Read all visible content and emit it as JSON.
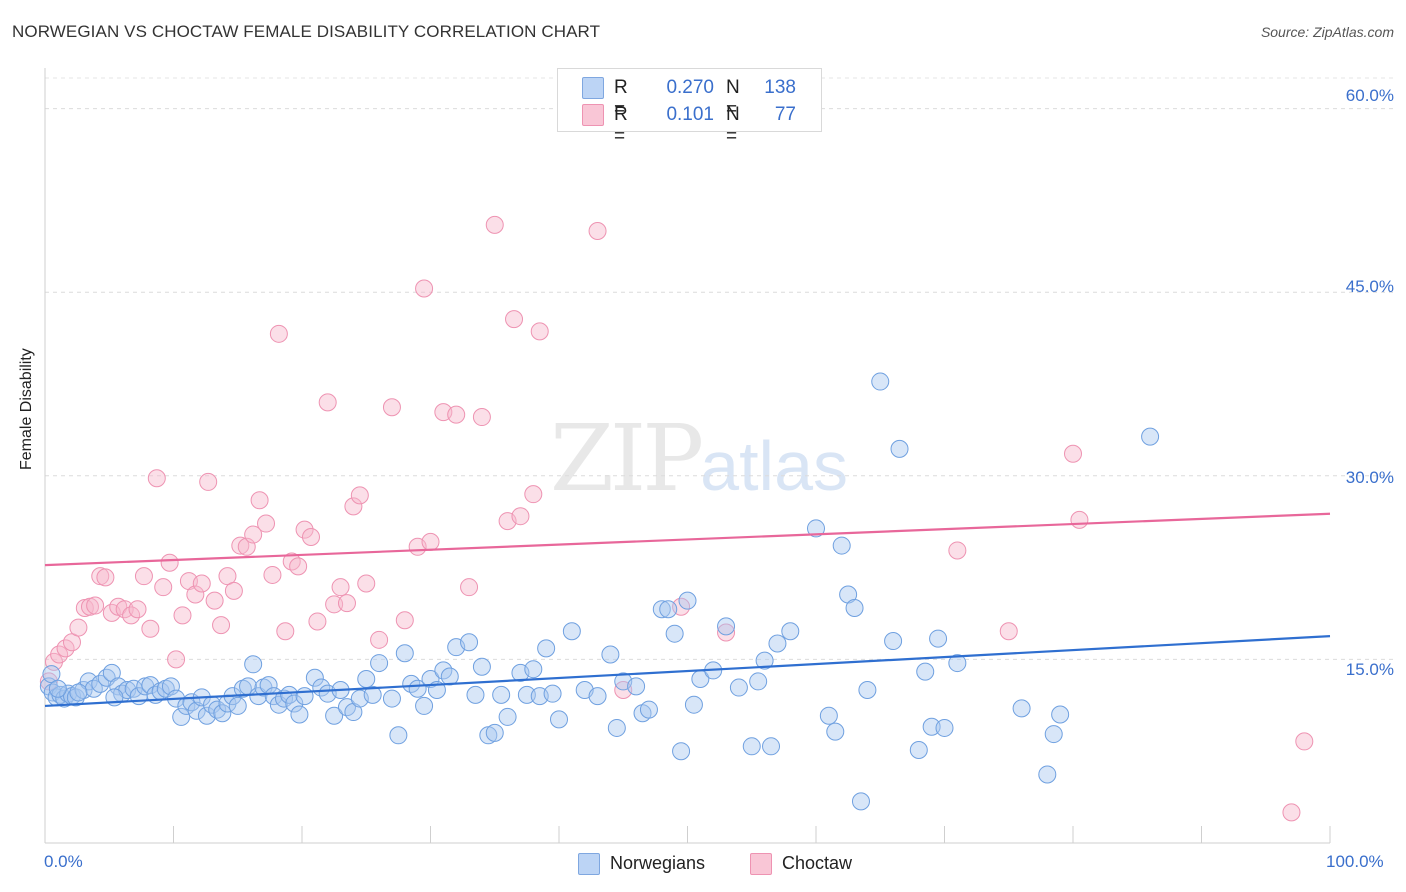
{
  "header": {
    "title": "NORWEGIAN VS CHOCTAW FEMALE DISABILITY CORRELATION CHART",
    "source": "Source: ZipAtlas.com"
  },
  "watermark": {
    "part1": "ZIP",
    "part2": "atlas"
  },
  "legend": {
    "rows": [
      {
        "r_label": "R =",
        "r_value": "0.270",
        "n_label": "N =",
        "n_value": "138",
        "color": "#a9c8f0"
      },
      {
        "r_label": "R =",
        "r_value": "0.101",
        "n_label": "N =",
        "n_value": "77",
        "color": "#f7b8cc"
      }
    ]
  },
  "bottom_legend": {
    "items": [
      {
        "label": "Norwegians",
        "color": "#a9c8f0"
      },
      {
        "label": "Choctaw",
        "color": "#f7b8cc"
      }
    ]
  },
  "chart_data": {
    "type": "scatter",
    "title": "NORWEGIAN VS CHOCTAW FEMALE DISABILITY CORRELATION CHART",
    "xlabel": "",
    "ylabel": "Female Disability",
    "xlim": [
      0,
      100
    ],
    "ylim": [
      0,
      60
    ],
    "x_tick_labels": [
      "0.0%",
      "100.0%"
    ],
    "y_tick_labels": [
      "15.0%",
      "30.0%",
      "45.0%",
      "60.0%"
    ],
    "y_ticks": [
      15,
      30,
      45,
      60
    ],
    "grid": true,
    "legend_position": "top-center",
    "colors": {
      "norwegians": "#6fa0e0",
      "choctaw": "#f08aac",
      "norwegians_line": "#2f6fd0",
      "choctaw_line": "#e8679a"
    },
    "series": [
      {
        "name": "Norwegians",
        "trend": {
          "x": [
            0,
            100
          ],
          "y": [
            11.2,
            16.9
          ]
        },
        "points": [
          [
            0.3,
            12.8
          ],
          [
            0.6,
            12.3
          ],
          [
            0.9,
            11.9
          ],
          [
            1.2,
            12.1
          ],
          [
            1.5,
            11.8
          ],
          [
            1.8,
            12.2
          ],
          [
            2.1,
            12.0
          ],
          [
            2.4,
            11.9
          ],
          [
            3.0,
            12.5
          ],
          [
            3.4,
            13.2
          ],
          [
            3.8,
            12.6
          ],
          [
            4.3,
            13.0
          ],
          [
            4.8,
            13.5
          ],
          [
            5.2,
            13.9
          ],
          [
            5.7,
            12.8
          ],
          [
            6.0,
            12.2
          ],
          [
            6.4,
            12.5
          ],
          [
            6.9,
            12.6
          ],
          [
            7.3,
            12.0
          ],
          [
            7.8,
            12.8
          ],
          [
            8.2,
            12.9
          ],
          [
            8.6,
            12.1
          ],
          [
            9.0,
            12.4
          ],
          [
            9.4,
            12.6
          ],
          [
            9.8,
            12.8
          ],
          [
            10.2,
            11.8
          ],
          [
            10.6,
            10.3
          ],
          [
            11.0,
            11.2
          ],
          [
            11.4,
            11.5
          ],
          [
            11.8,
            10.8
          ],
          [
            12.2,
            11.9
          ],
          [
            12.6,
            10.4
          ],
          [
            13.0,
            11.3
          ],
          [
            13.4,
            10.9
          ],
          [
            13.8,
            10.6
          ],
          [
            14.2,
            11.4
          ],
          [
            14.6,
            12.0
          ],
          [
            15.0,
            11.2
          ],
          [
            15.4,
            12.6
          ],
          [
            15.8,
            12.8
          ],
          [
            16.2,
            14.6
          ],
          [
            16.6,
            12.0
          ],
          [
            17.0,
            12.7
          ],
          [
            17.4,
            12.9
          ],
          [
            17.8,
            12.0
          ],
          [
            18.2,
            11.3
          ],
          [
            18.6,
            11.8
          ],
          [
            19.0,
            12.1
          ],
          [
            19.4,
            11.4
          ],
          [
            19.8,
            10.5
          ],
          [
            20.2,
            12.0
          ],
          [
            21.0,
            13.5
          ],
          [
            21.5,
            12.7
          ],
          [
            22.0,
            12.2
          ],
          [
            22.5,
            10.4
          ],
          [
            23.0,
            12.5
          ],
          [
            23.5,
            11.1
          ],
          [
            24.0,
            10.7
          ],
          [
            24.5,
            11.8
          ],
          [
            25.0,
            13.4
          ],
          [
            25.5,
            12.1
          ],
          [
            26.0,
            14.7
          ],
          [
            27.0,
            11.8
          ],
          [
            27.5,
            8.8
          ],
          [
            28.0,
            15.5
          ],
          [
            28.5,
            13.0
          ],
          [
            29.0,
            12.6
          ],
          [
            29.5,
            11.2
          ],
          [
            30.0,
            13.4
          ],
          [
            30.5,
            12.5
          ],
          [
            31.0,
            14.1
          ],
          [
            31.5,
            13.6
          ],
          [
            32.0,
            16.0
          ],
          [
            33.0,
            16.4
          ],
          [
            33.5,
            12.1
          ],
          [
            34.0,
            14.4
          ],
          [
            34.5,
            8.8
          ],
          [
            35.0,
            9.0
          ],
          [
            35.5,
            12.1
          ],
          [
            36.0,
            10.3
          ],
          [
            37.0,
            13.9
          ],
          [
            37.5,
            12.1
          ],
          [
            38.0,
            14.2
          ],
          [
            38.5,
            12.0
          ],
          [
            39.0,
            15.9
          ],
          [
            39.5,
            12.2
          ],
          [
            40.0,
            10.1
          ],
          [
            41.0,
            17.3
          ],
          [
            42.0,
            12.5
          ],
          [
            43.0,
            12.0
          ],
          [
            44.0,
            15.4
          ],
          [
            44.5,
            9.4
          ],
          [
            45.0,
            13.2
          ],
          [
            46.0,
            12.8
          ],
          [
            46.5,
            10.6
          ],
          [
            47.0,
            10.9
          ],
          [
            48.0,
            19.1
          ],
          [
            48.5,
            19.1
          ],
          [
            49.0,
            17.1
          ],
          [
            49.5,
            7.5
          ],
          [
            50.0,
            19.8
          ],
          [
            50.5,
            11.3
          ],
          [
            51.0,
            13.4
          ],
          [
            52.0,
            14.1
          ],
          [
            53.0,
            17.7
          ],
          [
            54.0,
            12.7
          ],
          [
            55.0,
            7.9
          ],
          [
            55.5,
            13.2
          ],
          [
            56.0,
            14.9
          ],
          [
            56.5,
            7.9
          ],
          [
            57.0,
            16.3
          ],
          [
            58.0,
            17.3
          ],
          [
            60.0,
            25.7
          ],
          [
            61.0,
            10.4
          ],
          [
            61.5,
            9.1
          ],
          [
            62.0,
            24.3
          ],
          [
            62.5,
            20.3
          ],
          [
            63.0,
            19.2
          ],
          [
            63.5,
            3.4
          ],
          [
            64.0,
            12.5
          ],
          [
            65.0,
            37.7
          ],
          [
            66.0,
            16.5
          ],
          [
            66.5,
            32.2
          ],
          [
            68.0,
            7.6
          ],
          [
            68.5,
            14.0
          ],
          [
            69.0,
            9.5
          ],
          [
            69.5,
            16.7
          ],
          [
            70.0,
            9.4
          ],
          [
            71.0,
            14.7
          ],
          [
            76.0,
            11.0
          ],
          [
            78.0,
            5.6
          ],
          [
            78.5,
            8.9
          ],
          [
            79.0,
            10.5
          ],
          [
            86.0,
            33.2
          ],
          [
            0.5,
            13.8
          ],
          [
            1.0,
            12.6
          ],
          [
            2.6,
            12.3
          ],
          [
            5.4,
            11.9
          ]
        ]
      },
      {
        "name": "Choctaw",
        "trend": {
          "x": [
            0,
            100
          ],
          "y": [
            22.7,
            26.9
          ]
        },
        "points": [
          [
            0.3,
            13.2
          ],
          [
            0.7,
            14.8
          ],
          [
            1.1,
            15.4
          ],
          [
            1.6,
            15.9
          ],
          [
            2.1,
            16.4
          ],
          [
            2.6,
            17.6
          ],
          [
            3.1,
            19.2
          ],
          [
            3.5,
            19.3
          ],
          [
            3.9,
            19.4
          ],
          [
            4.3,
            21.8
          ],
          [
            4.7,
            21.7
          ],
          [
            5.2,
            18.8
          ],
          [
            5.7,
            19.3
          ],
          [
            6.2,
            19.1
          ],
          [
            6.7,
            18.6
          ],
          [
            7.2,
            19.1
          ],
          [
            7.7,
            21.8
          ],
          [
            8.2,
            17.5
          ],
          [
            8.7,
            29.8
          ],
          [
            9.2,
            20.9
          ],
          [
            9.7,
            22.9
          ],
          [
            10.2,
            15.0
          ],
          [
            10.7,
            18.6
          ],
          [
            11.2,
            21.4
          ],
          [
            11.7,
            20.3
          ],
          [
            12.2,
            21.2
          ],
          [
            12.7,
            29.5
          ],
          [
            13.2,
            19.8
          ],
          [
            13.7,
            17.8
          ],
          [
            14.2,
            21.8
          ],
          [
            14.7,
            20.6
          ],
          [
            15.2,
            24.3
          ],
          [
            15.7,
            24.2
          ],
          [
            16.2,
            25.2
          ],
          [
            16.7,
            28.0
          ],
          [
            17.2,
            26.1
          ],
          [
            17.7,
            21.9
          ],
          [
            18.2,
            41.6
          ],
          [
            18.7,
            17.3
          ],
          [
            19.2,
            23.0
          ],
          [
            19.7,
            22.6
          ],
          [
            20.2,
            25.6
          ],
          [
            20.7,
            25.0
          ],
          [
            21.2,
            18.1
          ],
          [
            22.0,
            36.0
          ],
          [
            22.5,
            19.5
          ],
          [
            23.0,
            20.9
          ],
          [
            23.5,
            19.6
          ],
          [
            24.0,
            27.5
          ],
          [
            24.5,
            28.4
          ],
          [
            25.0,
            21.2
          ],
          [
            26.0,
            16.6
          ],
          [
            27.0,
            35.6
          ],
          [
            28.0,
            18.2
          ],
          [
            29.0,
            24.2
          ],
          [
            29.5,
            45.3
          ],
          [
            30.0,
            24.6
          ],
          [
            31.0,
            35.2
          ],
          [
            32.0,
            35.0
          ],
          [
            33.0,
            20.9
          ],
          [
            34.0,
            34.8
          ],
          [
            35.0,
            50.5
          ],
          [
            36.0,
            26.3
          ],
          [
            36.5,
            42.8
          ],
          [
            37.0,
            26.7
          ],
          [
            38.0,
            28.5
          ],
          [
            38.5,
            41.8
          ],
          [
            43.0,
            50.0
          ],
          [
            45.0,
            12.5
          ],
          [
            49.5,
            19.3
          ],
          [
            53.0,
            17.2
          ],
          [
            71.0,
            23.9
          ],
          [
            75.0,
            17.3
          ],
          [
            80.0,
            31.8
          ],
          [
            80.5,
            26.4
          ],
          [
            98.0,
            8.3
          ],
          [
            97.0,
            2.5
          ]
        ]
      }
    ]
  }
}
